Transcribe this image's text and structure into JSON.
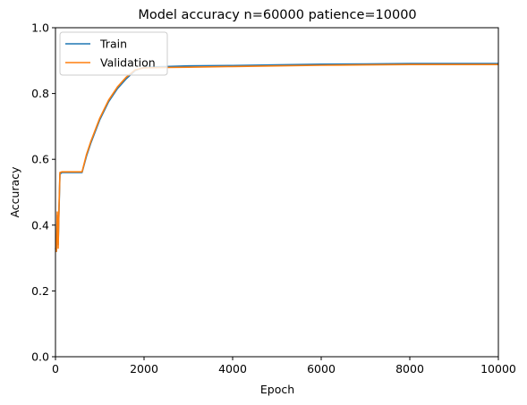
{
  "chart_data": {
    "type": "line",
    "title": "Model accuracy n=60000 patience=10000",
    "xlabel": "Epoch",
    "ylabel": "Accuracy",
    "xlim": [
      0,
      10000
    ],
    "ylim": [
      0.0,
      1.0
    ],
    "x_ticks": [
      "0",
      "2000",
      "4000",
      "6000",
      "8000",
      "10000"
    ],
    "y_ticks": [
      "0.0",
      "0.2",
      "0.4",
      "0.6",
      "0.8",
      "1.0"
    ],
    "grid": false,
    "legend_position": "upper-left",
    "series": [
      {
        "name": "Train",
        "color": "#1f77b4",
        "x": [
          0,
          20,
          40,
          60,
          80,
          100,
          150,
          300,
          600,
          700,
          800,
          1000,
          1200,
          1400,
          1600,
          1800,
          2000,
          2500,
          3000,
          4000,
          5000,
          6000,
          7000,
          8000,
          9000,
          10000
        ],
        "y": [
          0.33,
          0.32,
          0.43,
          0.34,
          0.45,
          0.555,
          0.56,
          0.56,
          0.56,
          0.61,
          0.65,
          0.72,
          0.775,
          0.815,
          0.845,
          0.87,
          0.88,
          0.882,
          0.884,
          0.885,
          0.887,
          0.889,
          0.89,
          0.891,
          0.891,
          0.891
        ]
      },
      {
        "name": "Validation",
        "color": "#ff7f0e",
        "x": [
          0,
          20,
          40,
          60,
          80,
          100,
          150,
          300,
          600,
          700,
          800,
          1000,
          1200,
          1400,
          1600,
          1800,
          2000,
          2500,
          3000,
          4000,
          5000,
          6000,
          7000,
          8000,
          9000,
          10000
        ],
        "y": [
          0.33,
          0.32,
          0.44,
          0.33,
          0.46,
          0.56,
          0.562,
          0.562,
          0.562,
          0.615,
          0.655,
          0.725,
          0.78,
          0.82,
          0.85,
          0.872,
          0.878,
          0.879,
          0.88,
          0.882,
          0.884,
          0.886,
          0.887,
          0.888,
          0.888,
          0.888
        ]
      }
    ]
  }
}
